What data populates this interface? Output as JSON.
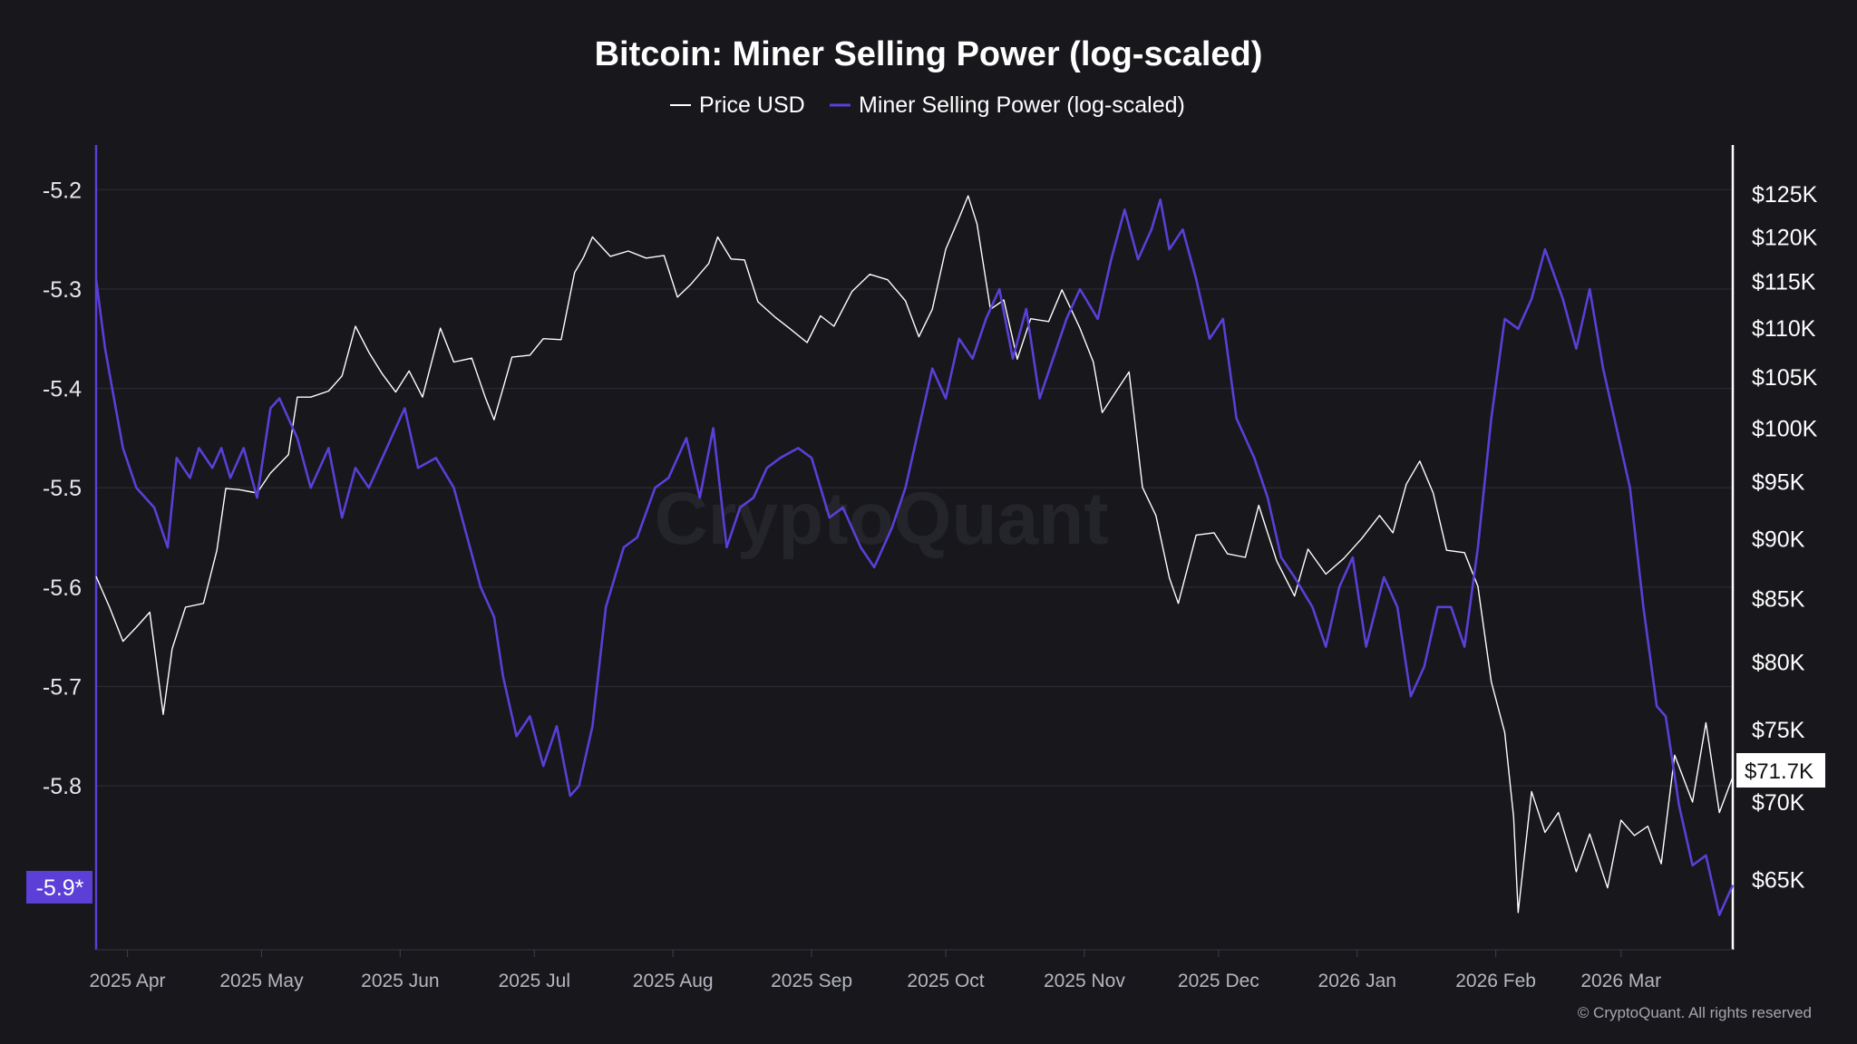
{
  "chart_data": {
    "type": "line",
    "title": "Bitcoin: Miner Selling Power (log-scaled)",
    "legend": [
      "Price USD",
      "Miner Selling Power (log-scaled)"
    ],
    "watermark": "CryptoQuant",
    "copyright": "© CryptoQuant. All rights reserved",
    "x_tick_labels": [
      "2025 Apr",
      "2025 May",
      "2025 Jun",
      "2025 Jul",
      "2025 Aug",
      "2025 Sep",
      "2025 Oct",
      "2025 Nov",
      "2025 Dec",
      "2026 Jan",
      "2026 Feb",
      "2026 Mar"
    ],
    "x_range": [
      "2025-03-25",
      "2026-03-26"
    ],
    "y_left": {
      "label": "Miner Selling Power (log-scaled)",
      "ticks": [
        -5.2,
        -5.3,
        -5.4,
        -5.5,
        -5.6,
        -5.7,
        -5.8
      ],
      "tick_labels": [
        "-5.2",
        "-5.3",
        "-5.4",
        "-5.5",
        "-5.6",
        "-5.7",
        "-5.8"
      ],
      "range": [
        -5.965,
        -5.155
      ],
      "current_label": "-5.9*"
    },
    "y_right": {
      "label": "Price USD",
      "scale": "log",
      "ticks": [
        125000,
        120000,
        115000,
        110000,
        105000,
        100000,
        95000,
        90000,
        85000,
        80000,
        75000,
        70000,
        65000
      ],
      "tick_labels": [
        "$125K",
        "$120K",
        "$115K",
        "$110K",
        "$105K",
        "$100K",
        "$95K",
        "$90K",
        "$85K",
        "$80K",
        "$75K",
        "$70K",
        "$65K"
      ],
      "range": [
        60800,
        131000
      ],
      "current_label": "$71.7K"
    },
    "series": [
      {
        "name": "Price USD",
        "color": "#ffffff",
        "axis": "right",
        "x": [
          "2025-03-25",
          "2025-03-28",
          "2025-03-31",
          "2025-04-03",
          "2025-04-06",
          "2025-04-09",
          "2025-04-11",
          "2025-04-14",
          "2025-04-18",
          "2025-04-21",
          "2025-04-23",
          "2025-04-26",
          "2025-04-30",
          "2025-05-03",
          "2025-05-07",
          "2025-05-09",
          "2025-05-12",
          "2025-05-16",
          "2025-05-19",
          "2025-05-22",
          "2025-05-25",
          "2025-05-28",
          "2025-05-31",
          "2025-06-03",
          "2025-06-06",
          "2025-06-10",
          "2025-06-13",
          "2025-06-17",
          "2025-06-20",
          "2025-06-22",
          "2025-06-26",
          "2025-06-30",
          "2025-07-03",
          "2025-07-07",
          "2025-07-10",
          "2025-07-12",
          "2025-07-14",
          "2025-07-18",
          "2025-07-22",
          "2025-07-26",
          "2025-07-30",
          "2025-08-02",
          "2025-08-05",
          "2025-08-09",
          "2025-08-11",
          "2025-08-14",
          "2025-08-17",
          "2025-08-20",
          "2025-08-24",
          "2025-08-27",
          "2025-08-31",
          "2025-09-03",
          "2025-09-06",
          "2025-09-10",
          "2025-09-14",
          "2025-09-18",
          "2025-09-22",
          "2025-09-25",
          "2025-09-28",
          "2025-10-01",
          "2025-10-04",
          "2025-10-06",
          "2025-10-08",
          "2025-10-11",
          "2025-10-14",
          "2025-10-17",
          "2025-10-20",
          "2025-10-24",
          "2025-10-27",
          "2025-10-31",
          "2025-11-03",
          "2025-11-05",
          "2025-11-08",
          "2025-11-11",
          "2025-11-14",
          "2025-11-17",
          "2025-11-20",
          "2025-11-22",
          "2025-11-26",
          "2025-11-30",
          "2025-12-03",
          "2025-12-07",
          "2025-12-10",
          "2025-12-14",
          "2025-12-18",
          "2025-12-21",
          "2025-12-25",
          "2025-12-29",
          "2026-01-02",
          "2026-01-06",
          "2026-01-09",
          "2026-01-12",
          "2026-01-15",
          "2026-01-18",
          "2026-01-21",
          "2026-01-25",
          "2026-01-28",
          "2026-01-31",
          "2026-02-03",
          "2026-02-05",
          "2026-02-06",
          "2026-02-09",
          "2026-02-12",
          "2026-02-15",
          "2026-02-19",
          "2026-02-22",
          "2026-02-26",
          "2026-03-01",
          "2026-03-04",
          "2026-03-07",
          "2026-03-10",
          "2026-03-13",
          "2026-03-17",
          "2026-03-20",
          "2026-03-23",
          "2026-03-26"
        ],
        "values": [
          86800,
          84300,
          81600,
          82700,
          83900,
          76100,
          81000,
          84300,
          84600,
          89000,
          94400,
          94300,
          94000,
          95800,
          97500,
          103000,
          103000,
          103600,
          105100,
          110200,
          107500,
          105300,
          103500,
          105600,
          103000,
          110000,
          106500,
          106900,
          103000,
          100800,
          107000,
          107200,
          108900,
          108800,
          116000,
          117700,
          120000,
          117800,
          118400,
          117600,
          117900,
          113300,
          114700,
          117000,
          120000,
          117500,
          117400,
          112800,
          111100,
          110000,
          108500,
          111300,
          110200,
          113900,
          115800,
          115200,
          112900,
          109100,
          112000,
          118600,
          122200,
          124800,
          121500,
          112000,
          113000,
          106800,
          111000,
          110700,
          114100,
          110000,
          106500,
          101500,
          103500,
          105500,
          94500,
          92000,
          86700,
          84600,
          90300,
          90500,
          88700,
          88400,
          92900,
          88100,
          85200,
          89100,
          87000,
          88300,
          90000,
          92000,
          90500,
          94800,
          96900,
          94000,
          89000,
          88800,
          86000,
          78500,
          74800,
          69000,
          63000,
          70700,
          68000,
          69300,
          65500,
          67900,
          64500,
          68800,
          67800,
          68400,
          66000,
          73200,
          70000,
          75500,
          69300,
          71700
        ]
      },
      {
        "name": "Miner Selling Power (log-scaled)",
        "color": "#5b3fd6",
        "axis": "left",
        "x": [
          "2025-03-25",
          "2025-03-27",
          "2025-03-29",
          "2025-03-31",
          "2025-04-03",
          "2025-04-07",
          "2025-04-10",
          "2025-04-12",
          "2025-04-15",
          "2025-04-17",
          "2025-04-20",
          "2025-04-22",
          "2025-04-24",
          "2025-04-27",
          "2025-04-30",
          "2025-05-03",
          "2025-05-05",
          "2025-05-09",
          "2025-05-12",
          "2025-05-16",
          "2025-05-19",
          "2025-05-22",
          "2025-05-25",
          "2025-05-28",
          "2025-05-31",
          "2025-06-02",
          "2025-06-05",
          "2025-06-09",
          "2025-06-13",
          "2025-06-16",
          "2025-06-19",
          "2025-06-22",
          "2025-06-24",
          "2025-06-27",
          "2025-06-30",
          "2025-07-03",
          "2025-07-06",
          "2025-07-09",
          "2025-07-11",
          "2025-07-14",
          "2025-07-17",
          "2025-07-21",
          "2025-07-24",
          "2025-07-28",
          "2025-07-31",
          "2025-08-04",
          "2025-08-07",
          "2025-08-10",
          "2025-08-13",
          "2025-08-16",
          "2025-08-19",
          "2025-08-22",
          "2025-08-25",
          "2025-08-29",
          "2025-09-01",
          "2025-09-05",
          "2025-09-08",
          "2025-09-12",
          "2025-09-15",
          "2025-09-19",
          "2025-09-22",
          "2025-09-25",
          "2025-09-28",
          "2025-10-01",
          "2025-10-04",
          "2025-10-07",
          "2025-10-10",
          "2025-10-13",
          "2025-10-16",
          "2025-10-19",
          "2025-10-22",
          "2025-10-25",
          "2025-10-28",
          "2025-10-31",
          "2025-11-04",
          "2025-11-07",
          "2025-11-10",
          "2025-11-13",
          "2025-11-16",
          "2025-11-18",
          "2025-11-20",
          "2025-11-23",
          "2025-11-26",
          "2025-11-29",
          "2025-12-02",
          "2025-12-05",
          "2025-12-09",
          "2025-12-12",
          "2025-12-15",
          "2025-12-18",
          "2025-12-22",
          "2025-12-25",
          "2025-12-28",
          "2025-12-31",
          "2026-01-03",
          "2026-01-07",
          "2026-01-10",
          "2026-01-13",
          "2026-01-16",
          "2026-01-19",
          "2026-01-22",
          "2026-01-25",
          "2026-01-28",
          "2026-01-31",
          "2026-02-03",
          "2026-02-06",
          "2026-02-09",
          "2026-02-12",
          "2026-02-16",
          "2026-02-19",
          "2026-02-22",
          "2026-02-25",
          "2026-02-28",
          "2026-03-03",
          "2026-03-06",
          "2026-03-09",
          "2026-03-11",
          "2026-03-14",
          "2026-03-17",
          "2026-03-20",
          "2026-03-23",
          "2026-03-26"
        ],
        "values": [
          -5.29,
          -5.36,
          -5.41,
          -5.46,
          -5.5,
          -5.52,
          -5.56,
          -5.47,
          -5.49,
          -5.46,
          -5.48,
          -5.46,
          -5.49,
          -5.46,
          -5.51,
          -5.42,
          -5.41,
          -5.45,
          -5.5,
          -5.46,
          -5.53,
          -5.48,
          -5.5,
          -5.47,
          -5.44,
          -5.42,
          -5.48,
          -5.47,
          -5.5,
          -5.55,
          -5.6,
          -5.63,
          -5.69,
          -5.75,
          -5.73,
          -5.78,
          -5.74,
          -5.81,
          -5.8,
          -5.74,
          -5.62,
          -5.56,
          -5.55,
          -5.5,
          -5.49,
          -5.45,
          -5.51,
          -5.44,
          -5.56,
          -5.52,
          -5.51,
          -5.48,
          -5.47,
          -5.46,
          -5.47,
          -5.53,
          -5.52,
          -5.56,
          -5.58,
          -5.54,
          -5.5,
          -5.44,
          -5.38,
          -5.41,
          -5.35,
          -5.37,
          -5.33,
          -5.3,
          -5.37,
          -5.32,
          -5.41,
          -5.37,
          -5.33,
          -5.3,
          -5.33,
          -5.27,
          -5.22,
          -5.27,
          -5.24,
          -5.21,
          -5.26,
          -5.24,
          -5.29,
          -5.35,
          -5.33,
          -5.43,
          -5.47,
          -5.51,
          -5.57,
          -5.59,
          -5.62,
          -5.66,
          -5.6,
          -5.57,
          -5.66,
          -5.59,
          -5.62,
          -5.71,
          -5.68,
          -5.62,
          -5.62,
          -5.66,
          -5.56,
          -5.43,
          -5.33,
          -5.34,
          -5.31,
          -5.26,
          -5.31,
          -5.36,
          -5.3,
          -5.38,
          -5.44,
          -5.5,
          -5.62,
          -5.72,
          -5.73,
          -5.82,
          -5.88,
          -5.87,
          -5.93,
          -5.9
        ]
      }
    ]
  }
}
